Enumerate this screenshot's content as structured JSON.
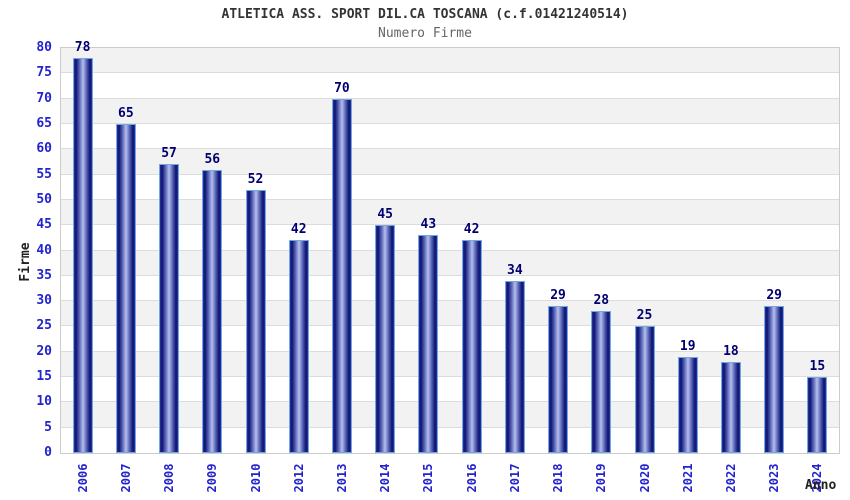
{
  "chart_data": {
    "type": "bar",
    "title": "ATLETICA ASS. SPORT DIL.CA TOSCANA (c.f.01421240514)",
    "subtitle": "Numero Firme",
    "xlabel": "Anno",
    "ylabel": "Firme",
    "categories": [
      "2006",
      "2007",
      "2008",
      "2009",
      "2010",
      "2012",
      "2013",
      "2014",
      "2015",
      "2016",
      "2017",
      "2018",
      "2019",
      "2020",
      "2021",
      "2022",
      "2023",
      "2024"
    ],
    "values": [
      78,
      65,
      57,
      56,
      52,
      42,
      70,
      45,
      43,
      42,
      34,
      29,
      28,
      25,
      19,
      18,
      29,
      15
    ],
    "ylim": [
      0,
      80
    ],
    "ytick_step": 5,
    "grid": true,
    "legend_position": "none",
    "colors": {
      "bar_border": "#6fa9e0",
      "bar_edge": "#2e3cae",
      "bar_dark": "#141a75",
      "bar_mid": "#5f6cbe",
      "bar_light": "#b7bfea",
      "band_gray": "#f2f2f2",
      "band_white": "#ffffff",
      "gridline": "#dcdcdc",
      "plot_border": "#cccccc",
      "axis_tick_text": "#2323cd",
      "value_label_text": "#000070",
      "title_text": "#333333",
      "subtitle_text": "#666666",
      "axis_title_text": "#222222"
    }
  }
}
